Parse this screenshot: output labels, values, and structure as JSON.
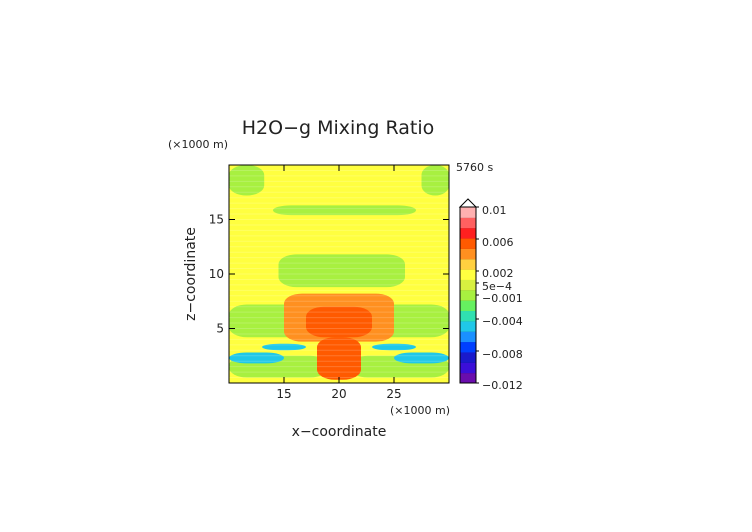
{
  "chart_data": {
    "type": "heatmap",
    "title": "H2O−g Mixing Ratio",
    "time_label": "5760 s",
    "xlabel": "x−coordinate",
    "ylabel": "z−coordinate",
    "x_unit": "(×1000 m)",
    "y_unit": "(×1000 m)",
    "xlim": [
      10,
      30
    ],
    "ylim": [
      0,
      20
    ],
    "x_ticks": [
      15,
      20,
      25
    ],
    "y_ticks": [
      5,
      10,
      15
    ],
    "x_tick_labels": [
      "15",
      "20",
      "25"
    ],
    "y_tick_labels": [
      "5",
      "10",
      "15"
    ],
    "colorbar": {
      "range": [
        -0.012,
        0.01
      ],
      "labels": [
        "0.01",
        "0.006",
        "0.002",
        "5e−4",
        "−0.001",
        "−0.004",
        "−0.008",
        "−0.012"
      ],
      "label_values": [
        0.01,
        0.006,
        0.002,
        0.0005,
        -0.001,
        -0.004,
        -0.008,
        -0.012
      ],
      "colors": [
        "#6a0dad",
        "#3b0fd8",
        "#1a1acc",
        "#0040ff",
        "#1a90ff",
        "#20c8e8",
        "#30e0b0",
        "#66f060",
        "#a8f040",
        "#d8f040",
        "#ffff40",
        "#ffd040",
        "#ff9020",
        "#ff5a00",
        "#ff2020",
        "#ff6060",
        "#ffb0b0"
      ]
    },
    "regions": [
      {
        "name": "background",
        "level": 0.0001,
        "color": "#ffff40"
      },
      {
        "name": "upper-band",
        "x": [
          14,
          27
        ],
        "z": [
          15.4,
          16.3
        ],
        "level": -0.0006,
        "color": "#a8f040"
      },
      {
        "name": "top-left-corner",
        "x": [
          10,
          13.2
        ],
        "z": [
          17.2,
          20
        ],
        "level": -0.0006,
        "color": "#a8f040"
      },
      {
        "name": "top-right-corner",
        "x": [
          27.5,
          30
        ],
        "z": [
          17.2,
          20
        ],
        "level": -0.0006,
        "color": "#a8f040"
      },
      {
        "name": "mid-band",
        "x": [
          14.5,
          26
        ],
        "z": [
          8.8,
          11.8
        ],
        "level": -0.0006,
        "color": "#a8f040"
      },
      {
        "name": "lower-left-band",
        "x": [
          10,
          17.5
        ],
        "z": [
          4.2,
          7.2
        ],
        "level": -0.0006,
        "color": "#a8f040"
      },
      {
        "name": "lower-right-band",
        "x": [
          22.5,
          30
        ],
        "z": [
          4.2,
          7.2
        ],
        "level": -0.0006,
        "color": "#a8f040"
      },
      {
        "name": "bottom-left-band",
        "x": [
          10,
          19
        ],
        "z": [
          0.5,
          2.5
        ],
        "level": -0.0006,
        "color": "#a8f040"
      },
      {
        "name": "bottom-right-band",
        "x": [
          21,
          30
        ],
        "z": [
          0.5,
          2.5
        ],
        "level": -0.0006,
        "color": "#a8f040"
      },
      {
        "name": "moist-core-outer",
        "x": [
          15,
          25
        ],
        "z": [
          3.8,
          8.2
        ],
        "level": 0.0012,
        "color": "#ff9020"
      },
      {
        "name": "moist-core-inner",
        "x": [
          17,
          23
        ],
        "z": [
          4.2,
          7.0
        ],
        "level": 0.0025,
        "color": "#ff5a00"
      },
      {
        "name": "moist-stem",
        "x": [
          18,
          22
        ],
        "z": [
          0.3,
          4.2
        ],
        "level": 0.0025,
        "color": "#ff5a00"
      },
      {
        "name": "dry-left-layer",
        "x": [
          10,
          15
        ],
        "z": [
          1.8,
          2.8
        ],
        "level": -0.0025,
        "color": "#20c8e8"
      },
      {
        "name": "dry-right-layer",
        "x": [
          25,
          30
        ],
        "z": [
          1.8,
          2.8
        ],
        "level": -0.0025,
        "color": "#20c8e8"
      },
      {
        "name": "dry-left-inner",
        "x": [
          13,
          17
        ],
        "z": [
          3.0,
          3.6
        ],
        "level": -0.0025,
        "color": "#20c8e8"
      },
      {
        "name": "dry-right-inner",
        "x": [
          23,
          27
        ],
        "z": [
          3.0,
          3.6
        ],
        "level": -0.0025,
        "color": "#20c8e8"
      }
    ]
  }
}
